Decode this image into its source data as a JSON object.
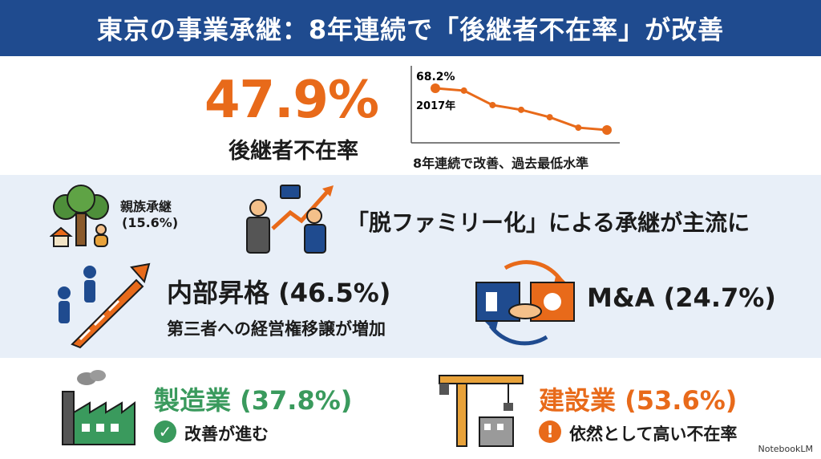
{
  "header": {
    "title": "東京の事業承継：8年連続で「後継者不在率」が改善"
  },
  "hero": {
    "rate": "47.9%",
    "rate_label": "後継者不在率",
    "chart_caption": "8年連続で改善、過去最低水準"
  },
  "chart_data": {
    "type": "line",
    "title": "",
    "xlabel": "",
    "ylabel": "",
    "series": [
      {
        "values": [
          68.2,
          67.5,
          63.2,
          61.8,
          59.6,
          56.5,
          55.8
        ]
      }
    ],
    "annotations": [
      {
        "text": "68.2%",
        "point": 0
      },
      {
        "text": "2017年",
        "point": 0
      }
    ],
    "grid": false,
    "colors": [
      "#e86a1a"
    ]
  },
  "family": {
    "label": "親族承継",
    "value": "(15.6%)"
  },
  "trend": {
    "label": "「脱ファミリー化」による承継が主流に"
  },
  "internal": {
    "title": "内部昇格 (46.5%)",
    "subtitle": "第三者への経営権移譲が増加"
  },
  "ma": {
    "title": "M&A (24.7%)"
  },
  "manufacturing": {
    "title": "製造業 (37.8%)",
    "note": "改善が進む",
    "badge": "✓"
  },
  "construction": {
    "title": "建設業 (53.6%)",
    "note": "依然として高い不在率",
    "badge": "!"
  },
  "footer": {
    "brand": "NotebookLM"
  },
  "colors": {
    "accent_orange": "#e86a1a",
    "header_blue": "#1f4b8f",
    "green": "#3a9a5d",
    "band": "#e8eff8"
  },
  "icons": [
    "tree-house-family-icon",
    "businessmen-handshake-growth-icon",
    "stairs-climbing-icon",
    "ma-handshake-cycle-icon",
    "factory-icon",
    "construction-crane-icon"
  ]
}
